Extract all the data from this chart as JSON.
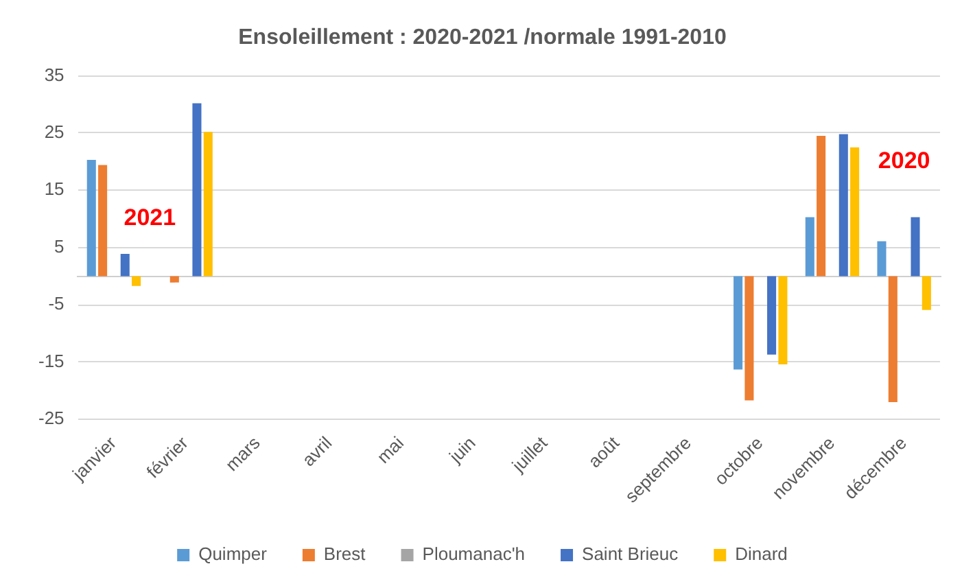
{
  "chart_data": {
    "type": "bar",
    "title": "Ensoleillement : 2020-2021 /normale 1991-2010",
    "categories": [
      "janvier",
      "février",
      "mars",
      "avril",
      "mai",
      "juin",
      "juillet",
      "août",
      "septembre",
      "octobre",
      "novembre",
      "décembre"
    ],
    "series": [
      {
        "name": "Quimper",
        "color": "#5b9bd5",
        "values": [
          20.3,
          null,
          null,
          null,
          null,
          null,
          null,
          null,
          null,
          -16.3,
          10.3,
          6.1
        ]
      },
      {
        "name": "Brest",
        "color": "#ed7d31",
        "values": [
          19.4,
          -1.1,
          null,
          null,
          null,
          null,
          null,
          null,
          null,
          -21.7,
          24.5,
          -22.0
        ]
      },
      {
        "name": "Ploumanac'h",
        "color": "#a5a5a5",
        "values": [
          null,
          null,
          null,
          null,
          null,
          null,
          null,
          null,
          null,
          null,
          null,
          null
        ]
      },
      {
        "name": "Saint Brieuc",
        "color": "#4472c4",
        "values": [
          3.9,
          30.2,
          null,
          null,
          null,
          null,
          null,
          null,
          null,
          -13.7,
          24.8,
          10.3
        ]
      },
      {
        "name": "Dinard",
        "color": "#ffc000",
        "values": [
          -1.7,
          25.2,
          null,
          null,
          null,
          null,
          null,
          null,
          null,
          -15.4,
          22.5,
          -5.9
        ]
      }
    ],
    "ylim": [
      -25,
      35
    ],
    "yticks": [
      -25,
      -15,
      -5,
      5,
      15,
      25,
      35
    ],
    "grid": "y",
    "legend": "bottom",
    "annotations": [
      "2021",
      "2020"
    ]
  }
}
